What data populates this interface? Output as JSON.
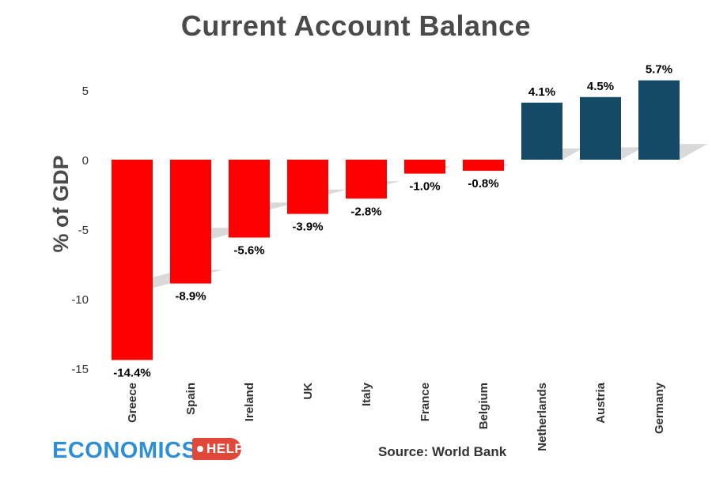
{
  "chart_data": {
    "type": "bar",
    "title": "Current Account Balance",
    "ylabel": "% of GDP",
    "xlabel": "",
    "categories": [
      "Greece",
      "Spain",
      "Ireland",
      "UK",
      "Italy",
      "France",
      "Belgium",
      "Netherlands",
      "Austria",
      "Germany"
    ],
    "values": [
      -14.4,
      -8.9,
      -5.6,
      -3.9,
      -2.8,
      -1.0,
      -0.8,
      4.1,
      4.5,
      5.7
    ],
    "data_labels": [
      "-14.4%",
      "-8.9%",
      "-5.6%",
      "-3.9%",
      "-2.8%",
      "-1.0%",
      "-0.8%",
      "4.1%",
      "4.5%",
      "5.7%"
    ],
    "yticks": [
      5,
      0,
      -5,
      -10,
      -15
    ],
    "ylim": [
      -15,
      5.7
    ],
    "grid": false,
    "legend": "none",
    "colors": {
      "negative": "#ff0000",
      "positive": "#154a66",
      "shadow": "#d9d9d9"
    }
  },
  "branding": {
    "logo_main": "ECONOMICS",
    "logo_tag": "HELP"
  },
  "source": "Source: World Bank"
}
